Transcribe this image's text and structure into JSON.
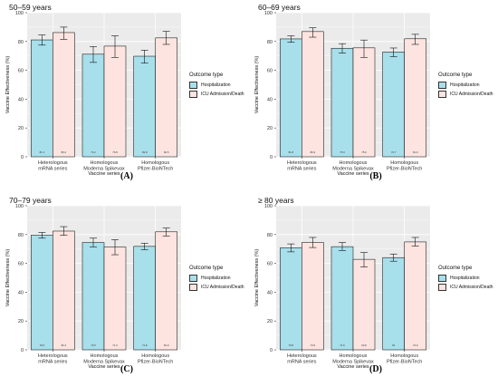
{
  "colors": {
    "hospitalization": "#a7dfeb",
    "icu": "#fde4e0",
    "panel_bg": "#ebebeb",
    "grid": "#ffffff"
  },
  "chart_data": [
    {
      "type": "bar",
      "title": "50–59 years",
      "panel_label": "(A)",
      "xlabel": "Vaccine series",
      "ylabel": "Vaccine Effectiveness (%)",
      "ylim": [
        0,
        100
      ],
      "yticks": [
        "0",
        "20",
        "40",
        "60",
        "80",
        "100"
      ],
      "categories": [
        "Heterologous mRNA series",
        "Homologous Moderna Spikevax",
        "Homologous Pfizer-BioNTech"
      ],
      "category_lines": [
        [
          "Heterologous",
          "mRNA series"
        ],
        [
          "Homologous",
          "Moderna Spikevax"
        ],
        [
          "Homologous",
          "Pfizer-BioNTech"
        ]
      ],
      "legend_title": "Outcome type",
      "series": [
        {
          "name": "Hospitalization",
          "values": [
            81.1,
            71.2,
            69.8
          ],
          "lower": [
            77.5,
            65.5,
            65.0
          ],
          "upper": [
            84.5,
            76.5,
            74.0
          ],
          "labels": [
            "81.1",
            "71.2",
            "69.8"
          ]
        },
        {
          "name": "ICU Admission/Death",
          "values": [
            86.2,
            76.8,
            82.5
          ],
          "lower": [
            81.5,
            69.0,
            78.0
          ],
          "upper": [
            90.0,
            84.0,
            87.0
          ],
          "labels": [
            "86.2",
            "76.8",
            "82.5"
          ]
        }
      ]
    },
    {
      "type": "bar",
      "title": "60–69 years",
      "panel_label": "(B)",
      "xlabel": "Vaccine series",
      "ylabel": "Vaccine Effectiveness (%)",
      "ylim": [
        0,
        100
      ],
      "yticks": [
        "0",
        "20",
        "40",
        "60",
        "80",
        "100"
      ],
      "categories": [
        "Heterologous mRNA series",
        "Homologous Moderna Spikevax",
        "Homologous Pfizer-BioNTech"
      ],
      "category_lines": [
        [
          "Heterologous",
          "mRNA series"
        ],
        [
          "Homologous",
          "Moderna Spikevax"
        ],
        [
          "Homologous",
          "Pfizer-BioNTech"
        ]
      ],
      "legend_title": "Outcome type",
      "series": [
        {
          "name": "Hospitalization",
          "values": [
            81.8,
            75.3,
            72.7
          ],
          "lower": [
            79.5,
            72.0,
            69.5
          ],
          "upper": [
            84.0,
            78.5,
            75.5
          ],
          "labels": [
            "81.8",
            "75.3",
            "72.7"
          ]
        },
        {
          "name": "ICU Admission/Death",
          "values": [
            86.9,
            75.6,
            81.9
          ],
          "lower": [
            83.0,
            69.0,
            78.0
          ],
          "upper": [
            89.5,
            81.0,
            85.0
          ],
          "labels": [
            "86.9",
            "75.6",
            "81.9"
          ]
        }
      ]
    },
    {
      "type": "bar",
      "title": "70–79 years",
      "panel_label": "(C)",
      "xlabel": "Vaccine series",
      "ylabel": "Vaccine Effectiveness (%)",
      "ylim": [
        0,
        100
      ],
      "yticks": [
        "0",
        "20",
        "40",
        "60",
        "80",
        "100"
      ],
      "categories": [
        "Heterologous mRNA series",
        "Homologous Moderna Spikevax",
        "Homologous Pfizer-BioNTech"
      ],
      "category_lines": [
        [
          "Heterologous",
          "mRNA series"
        ],
        [
          "Homologous",
          "Moderna Spikevax"
        ],
        [
          "Homologous",
          "Pfizer-BioNTech"
        ]
      ],
      "legend_title": "Outcome type",
      "series": [
        {
          "name": "Hospitalization",
          "values": [
            79.6,
            74.5,
            71.8
          ],
          "lower": [
            77.5,
            71.5,
            69.5
          ],
          "upper": [
            81.5,
            77.5,
            74.0
          ],
          "labels": [
            "79.6",
            "74.5",
            "71.8"
          ]
        },
        {
          "name": "ICU Admission/Death",
          "values": [
            82.4,
            71.3,
            81.9
          ],
          "lower": [
            79.5,
            66.0,
            79.0
          ],
          "upper": [
            85.5,
            76.5,
            84.5
          ],
          "labels": [
            "82.4",
            "71.3",
            "81.9"
          ]
        }
      ]
    },
    {
      "type": "bar",
      "title": "≥ 80 years",
      "panel_label": "(D)",
      "xlabel": "Vaccine series",
      "ylabel": "Vaccine Effectiveness (%)",
      "ylim": [
        0,
        100
      ],
      "yticks": [
        "0",
        "20",
        "40",
        "60",
        "80",
        "100"
      ],
      "categories": [
        "Heterologous mRNA series",
        "Homologous Moderna Spikevax",
        "Homologous Pfizer-BioNTech"
      ],
      "category_lines": [
        [
          "Heterologous",
          "mRNA series"
        ],
        [
          "Homologous",
          "Moderna Spikevax"
        ],
        [
          "Homologous",
          "Pfizer-BioNTech"
        ]
      ],
      "legend_title": "Outcome type",
      "series": [
        {
          "name": "Hospitalization",
          "values": [
            70.8,
            71.6,
            64.0
          ],
          "lower": [
            68.0,
            69.0,
            61.5
          ],
          "upper": [
            73.5,
            74.5,
            66.5
          ],
          "labels": [
            "70.8",
            "71.6",
            "64"
          ]
        },
        {
          "name": "ICU Admission/Death",
          "values": [
            74.5,
            62.8,
            74.9
          ],
          "lower": [
            71.0,
            57.5,
            72.0
          ],
          "upper": [
            78.0,
            67.5,
            78.0
          ],
          "labels": [
            "74.5",
            "62.8",
            "74.9"
          ]
        }
      ]
    }
  ]
}
